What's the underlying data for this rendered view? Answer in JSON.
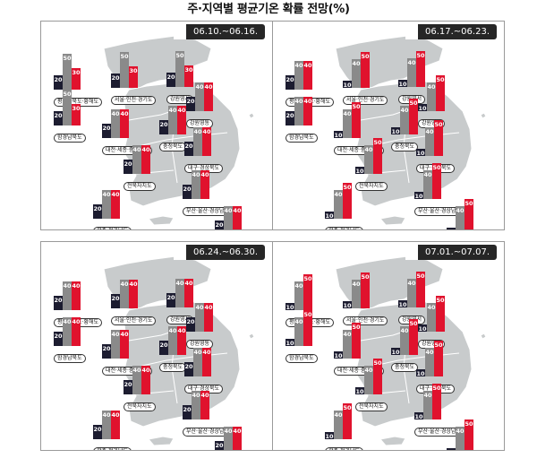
{
  "title": "주·지역별 평균기온 확률 전망(%)",
  "colors": {
    "low": "#1c1c30",
    "normal": "#8a8a8a",
    "high": "#e0122d",
    "land": "#c8cbcc",
    "border": "#ffffff",
    "badge_bg": "#262626"
  },
  "panels": [
    {
      "period": "06.10.~06.16.",
      "regions": [
        {
          "name": "평안남북도·황해도",
          "values": [
            20,
            50,
            30
          ]
        },
        {
          "name": "함경남북도",
          "values": [
            20,
            50,
            30
          ]
        },
        {
          "name": "서울·인천·경기도",
          "values": [
            20,
            50,
            30
          ]
        },
        {
          "name": "강원영서",
          "values": [
            20,
            50,
            30
          ]
        },
        {
          "name": "강원영동",
          "values": [
            20,
            40,
            40
          ]
        },
        {
          "name": "충청북도",
          "values": [
            20,
            40,
            40
          ]
        },
        {
          "name": "대전·세종·충청남도",
          "values": [
            20,
            40,
            40
          ]
        },
        {
          "name": "대구·경상북도",
          "values": [
            20,
            40,
            40
          ]
        },
        {
          "name": "전북자치도",
          "values": [
            20,
            40,
            40
          ]
        },
        {
          "name": "광주·전라남도",
          "values": [
            20,
            40,
            40
          ]
        },
        {
          "name": "부산·울산·경상남도",
          "values": [
            20,
            40,
            40
          ]
        },
        {
          "name": "제주도",
          "values": [
            20,
            40,
            40
          ]
        }
      ]
    },
    {
      "period": "06.17.~06.23.",
      "regions": [
        {
          "name": "평안남북도·황해도",
          "values": [
            20,
            40,
            40
          ]
        },
        {
          "name": "함경남북도",
          "values": [
            20,
            40,
            40
          ]
        },
        {
          "name": "서울·인천·경기도",
          "values": [
            10,
            40,
            50
          ]
        },
        {
          "name": "강원영서",
          "values": [
            10,
            40,
            50
          ]
        },
        {
          "name": "강원영동",
          "values": [
            10,
            40,
            50
          ]
        },
        {
          "name": "충청북도",
          "values": [
            10,
            40,
            50
          ]
        },
        {
          "name": "대전·세종·충청남도",
          "values": [
            10,
            40,
            50
          ]
        },
        {
          "name": "대구·경상북도",
          "values": [
            10,
            40,
            50
          ]
        },
        {
          "name": "전북자치도",
          "values": [
            10,
            40,
            50
          ]
        },
        {
          "name": "광주·전라남도",
          "values": [
            10,
            40,
            50
          ]
        },
        {
          "name": "부산·울산·경상남도",
          "values": [
            10,
            40,
            50
          ]
        },
        {
          "name": "제주도",
          "values": [
            10,
            40,
            50
          ]
        }
      ]
    },
    {
      "period": "06.24.~06.30.",
      "regions": [
        {
          "name": "평안남북도·황해도",
          "values": [
            20,
            40,
            40
          ]
        },
        {
          "name": "함경남북도",
          "values": [
            20,
            40,
            40
          ]
        },
        {
          "name": "서울·인천·경기도",
          "values": [
            20,
            40,
            40
          ]
        },
        {
          "name": "강원영서",
          "values": [
            20,
            40,
            40
          ]
        },
        {
          "name": "강원영동",
          "values": [
            20,
            40,
            40
          ]
        },
        {
          "name": "충청북도",
          "values": [
            20,
            40,
            40
          ]
        },
        {
          "name": "대전·세종·충청남도",
          "values": [
            20,
            40,
            40
          ]
        },
        {
          "name": "대구·경상북도",
          "values": [
            20,
            40,
            40
          ]
        },
        {
          "name": "전북자치도",
          "values": [
            20,
            40,
            40
          ]
        },
        {
          "name": "광주·전라남도",
          "values": [
            20,
            40,
            40
          ]
        },
        {
          "name": "부산·울산·경상남도",
          "values": [
            20,
            40,
            40
          ]
        },
        {
          "name": "제주도",
          "values": [
            20,
            40,
            40
          ]
        }
      ]
    },
    {
      "period": "07.01.~07.07.",
      "regions": [
        {
          "name": "평안남북도·황해도",
          "values": [
            10,
            40,
            50
          ]
        },
        {
          "name": "함경남북도",
          "values": [
            10,
            40,
            50
          ]
        },
        {
          "name": "서울·인천·경기도",
          "values": [
            10,
            40,
            50
          ]
        },
        {
          "name": "강원영서",
          "values": [
            10,
            40,
            50
          ]
        },
        {
          "name": "강원영동",
          "values": [
            10,
            40,
            50
          ]
        },
        {
          "name": "충청북도",
          "values": [
            10,
            40,
            50
          ]
        },
        {
          "name": "대전·세종·충청남도",
          "values": [
            10,
            40,
            50
          ]
        },
        {
          "name": "대구·경상북도",
          "values": [
            10,
            40,
            50
          ]
        },
        {
          "name": "전북자치도",
          "values": [
            10,
            40,
            50
          ]
        },
        {
          "name": "광주·전라남도",
          "values": [
            10,
            40,
            50
          ]
        },
        {
          "name": "부산·울산·경상남도",
          "values": [
            10,
            40,
            50
          ]
        },
        {
          "name": "제주도",
          "values": [
            10,
            40,
            50
          ]
        }
      ]
    }
  ]
}
